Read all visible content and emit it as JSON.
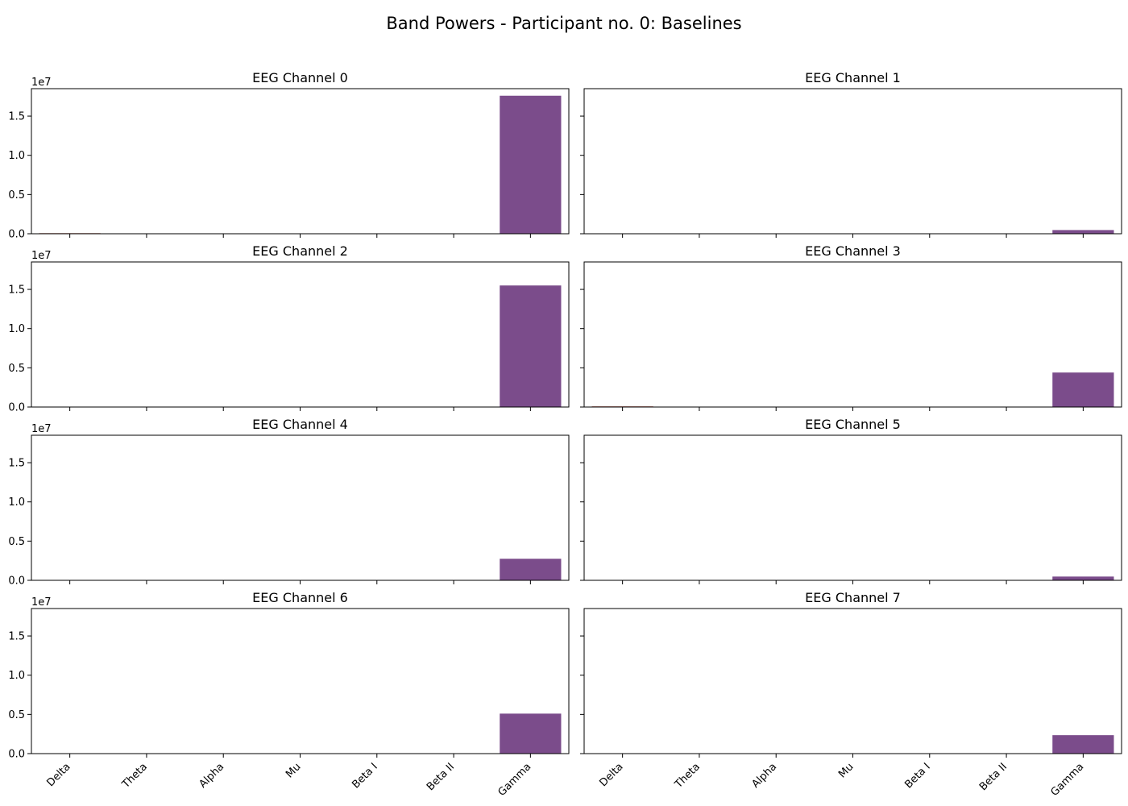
{
  "figure": {
    "title": "Band Powers - Participant no. 0: Baselines"
  },
  "colors": {
    "bar": "#7b4c8b",
    "delta_bar": "#a23d2c"
  },
  "chart_data": {
    "type": "bar",
    "categories": [
      "Delta",
      "Theta",
      "Alpha",
      "Mu",
      "Beta I",
      "Beta II",
      "Gamma"
    ],
    "y_exponent_label": "1e7",
    "y_scale": 10000000,
    "y_ticks": [
      0.0,
      0.5,
      1.0,
      1.5
    ],
    "y_tick_labels": [
      "0.0",
      "0.5",
      "1.0",
      "1.5"
    ],
    "ylim": [
      0,
      18500000
    ],
    "grid": false,
    "sharex": true,
    "sharey": true,
    "subplots": [
      {
        "title": "EEG Channel 0",
        "values": [
          70000,
          8000,
          4000,
          3000,
          3000,
          4000,
          17600000
        ]
      },
      {
        "title": "EEG Channel 1",
        "values": [
          10000,
          3000,
          2000,
          1000,
          1000,
          2000,
          470000
        ]
      },
      {
        "title": "EEG Channel 2",
        "values": [
          30000,
          6000,
          3000,
          2000,
          2000,
          3000,
          15500000
        ]
      },
      {
        "title": "EEG Channel 3",
        "values": [
          80000,
          8000,
          4000,
          3000,
          3000,
          4000,
          4400000
        ]
      },
      {
        "title": "EEG Channel 4",
        "values": [
          20000,
          4000,
          2000,
          1500,
          1500,
          2000,
          2750000
        ]
      },
      {
        "title": "EEG Channel 5",
        "values": [
          10000,
          3000,
          2000,
          1000,
          1000,
          2000,
          480000
        ]
      },
      {
        "title": "EEG Channel 6",
        "values": [
          20000,
          4000,
          2000,
          1500,
          1500,
          2000,
          5100000
        ]
      },
      {
        "title": "EEG Channel 7",
        "values": [
          10000,
          3000,
          2000,
          1000,
          1000,
          2000,
          2350000
        ]
      }
    ]
  }
}
